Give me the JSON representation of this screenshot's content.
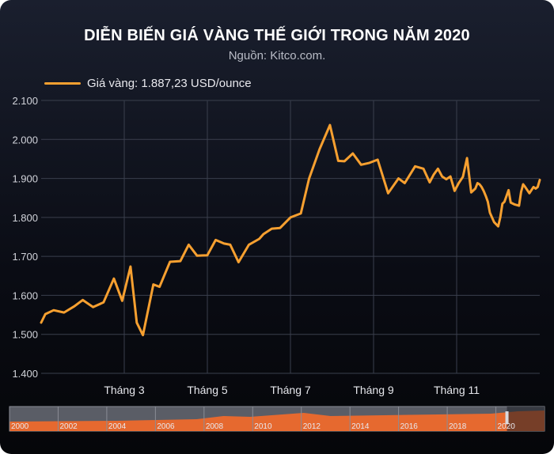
{
  "header": {
    "title": "DIỄN BIẾN GIÁ VÀNG THẾ GIỚI TRONG NĂM 2020",
    "source": "Nguồn: Kitco.com."
  },
  "colors": {
    "line": "#f7a030",
    "grid": "#3a3f4d",
    "navFill": "#f26a2a"
  },
  "chart_data": {
    "type": "line",
    "title": "DIỄN BIẾN GIÁ VÀNG THẾ GIỚI TRONG NĂM 2020",
    "subtitle": "Nguồn: Kitco.com.",
    "xlabel": "",
    "ylabel": "",
    "ylim": [
      1400,
      2100
    ],
    "yticks": [
      1400,
      1500,
      1600,
      1700,
      1800,
      1900,
      2000,
      2100
    ],
    "ytick_labels": [
      "1.400",
      "1.500",
      "1.600",
      "1.700",
      "1.800",
      "1.900",
      "2.000",
      "2.100"
    ],
    "xlim": [
      0,
      12
    ],
    "xticks": [
      {
        "x": 2.0,
        "label": "Tháng 3"
      },
      {
        "x": 4.0,
        "label": "Tháng 5"
      },
      {
        "x": 6.0,
        "label": "Tháng 7"
      },
      {
        "x": 8.0,
        "label": "Tháng 9"
      },
      {
        "x": 10.0,
        "label": "Tháng 11"
      }
    ],
    "grid": true,
    "legend_position": "top-left",
    "series": [
      {
        "name": "Giá vàng: 1.887,23 USD/ounce",
        "x": [
          0.0,
          0.1,
          0.3,
          0.55,
          0.8,
          1.0,
          1.25,
          1.5,
          1.75,
          1.95,
          2.15,
          2.3,
          2.45,
          2.7,
          2.85,
          3.1,
          3.35,
          3.55,
          3.75,
          4.0,
          4.2,
          4.4,
          4.55,
          4.75,
          5.0,
          5.25,
          5.35,
          5.55,
          5.75,
          6.0,
          6.25,
          6.45,
          6.7,
          6.95,
          7.15,
          7.3,
          7.5,
          7.7,
          7.9,
          8.1,
          8.35,
          8.6,
          8.75,
          9.0,
          9.2,
          9.35,
          9.45,
          9.55,
          9.65,
          9.75,
          9.85,
          9.95,
          10.05,
          10.15,
          10.25,
          10.35,
          10.45,
          10.5,
          10.55,
          10.6,
          10.65,
          10.7,
          10.75,
          10.8,
          10.9,
          11.0,
          11.05,
          11.1,
          11.15,
          11.25,
          11.3,
          11.4,
          11.5,
          11.55,
          11.6,
          11.65,
          11.75,
          11.85,
          11.9,
          11.95,
          12.0
        ],
        "values": [
          1530,
          1552,
          1562,
          1556,
          1572,
          1588,
          1570,
          1582,
          1643,
          1586,
          1674,
          1530,
          1498,
          1628,
          1622,
          1686,
          1688,
          1730,
          1702,
          1703,
          1742,
          1733,
          1730,
          1685,
          1730,
          1745,
          1757,
          1771,
          1773,
          1800,
          1810,
          1900,
          1975,
          2037,
          1945,
          1944,
          1964,
          1935,
          1940,
          1948,
          1862,
          1900,
          1888,
          1931,
          1925,
          1890,
          1910,
          1925,
          1905,
          1898,
          1905,
          1868,
          1888,
          1904,
          1952,
          1864,
          1874,
          1888,
          1885,
          1878,
          1868,
          1855,
          1840,
          1812,
          1788,
          1777,
          1800,
          1835,
          1840,
          1870,
          1838,
          1833,
          1830,
          1865,
          1885,
          1878,
          1862,
          1878,
          1874,
          1878,
          1896
        ]
      }
    ],
    "navigator": {
      "years": [
        "2000",
        "2002",
        "2004",
        "2006",
        "2008",
        "2010",
        "2012",
        "2014",
        "2016",
        "2018",
        "2020"
      ],
      "selected": "2020"
    }
  }
}
